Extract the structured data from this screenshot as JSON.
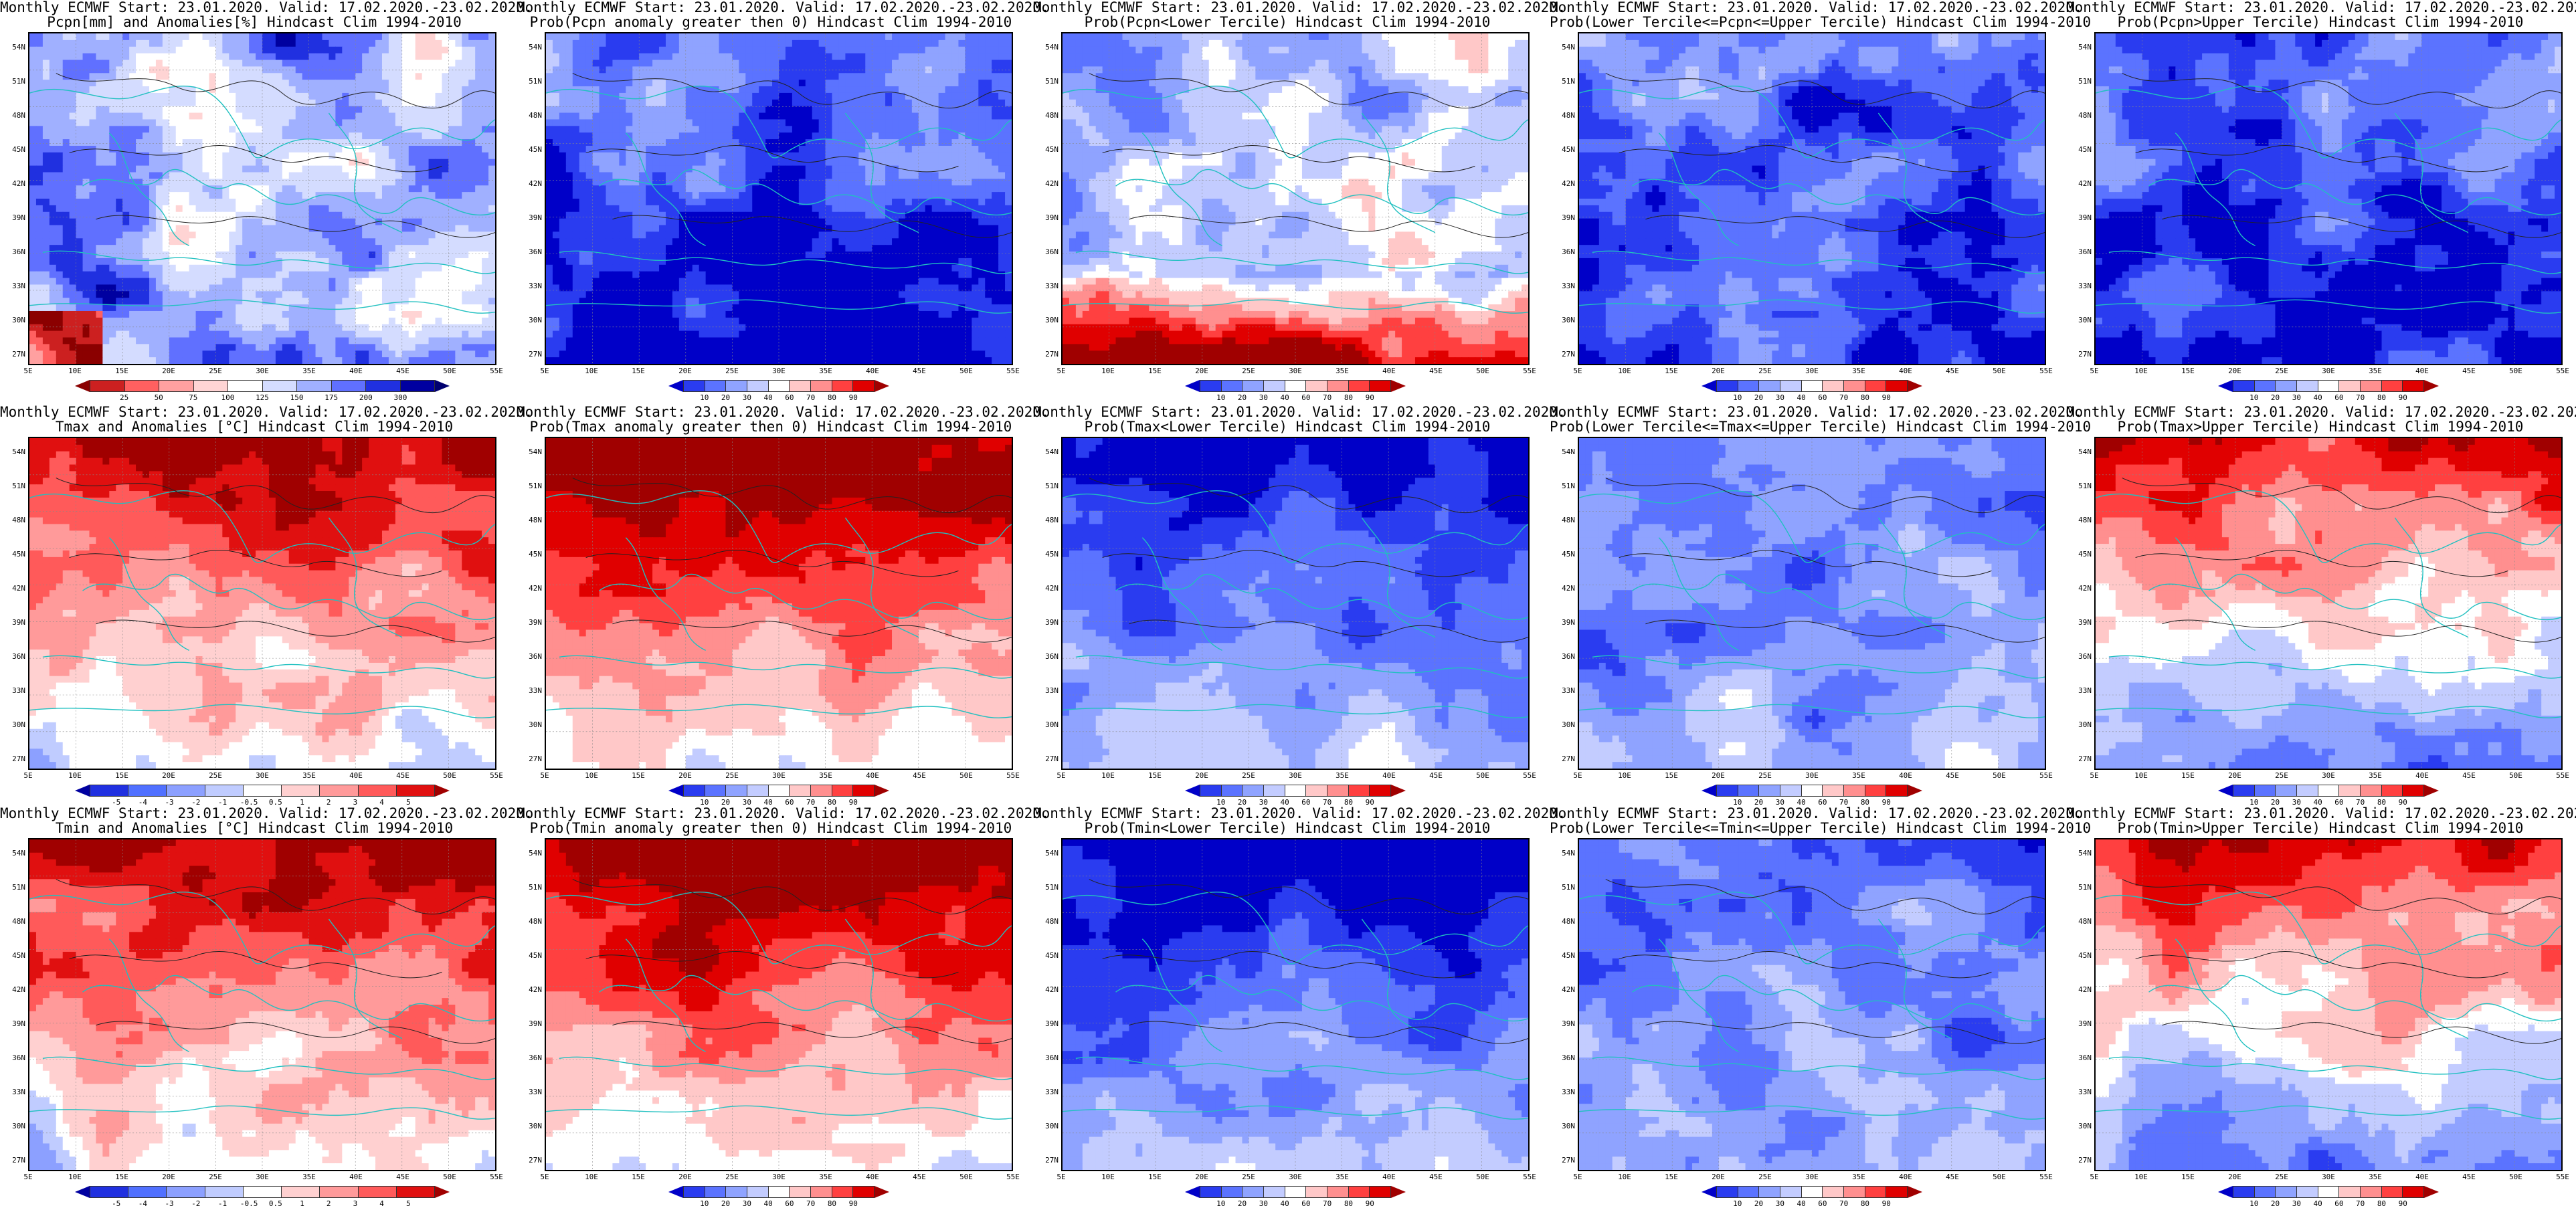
{
  "common": {
    "line1": "Monthly ECMWF Start: 23.01.2020. Valid: 17.02.2020.-23.02.2020.",
    "lat_labels": [
      "54N",
      "51N",
      "48N",
      "45N",
      "42N",
      "39N",
      "36N",
      "33N",
      "30N",
      "27N"
    ],
    "lon_labels": [
      "5E",
      "10E",
      "15E",
      "20E",
      "25E",
      "30E",
      "35E",
      "40E",
      "45E",
      "50E",
      "55E"
    ]
  },
  "palettes": {
    "prob": [
      "#0000c8",
      "#2a3cf0",
      "#5b73ff",
      "#8fa3ff",
      "#c3ccff",
      "#ffffff",
      "#ffc8c8",
      "#ff8f8f",
      "#ff4040",
      "#e00000",
      "#a00000"
    ],
    "pcpn": [
      "#8b0000",
      "#cc2020",
      "#ff6060",
      "#ffa0a0",
      "#ffd4d4",
      "#ffffff",
      "#d4dcff",
      "#a0b0ff",
      "#6070ff",
      "#2030e0",
      "#0000a0",
      "#000070"
    ],
    "temp": [
      "#0000a0",
      "#2030e0",
      "#5070ff",
      "#8ca0ff",
      "#c0ccff",
      "#ffffff",
      "#ffd0d0",
      "#ff9a9a",
      "#ff5a5a",
      "#e01010",
      "#a00000"
    ]
  },
  "colorbars": {
    "prob_ticks": [
      "10",
      "20",
      "30",
      "40",
      "60",
      "70",
      "80",
      "90"
    ],
    "pcpn_ticks": [
      "25",
      "50",
      "75",
      "100",
      "125",
      "150",
      "175",
      "200",
      "300"
    ],
    "temp_ticks": [
      "-5",
      "-4",
      "-3",
      "-2",
      "-1",
      "-0.5",
      "0.5",
      "1",
      "2",
      "3",
      "4",
      "5"
    ]
  },
  "panels": [
    {
      "title2": "Pcpn[mm] and Anomalies[%] Hindcast Clim 1994-2010",
      "pal": "pcpn",
      "ticks": "pcpn_ticks",
      "mode": "pcpn"
    },
    {
      "title2": "Prob(Pcpn anomaly greater then 0) Hindcast Clim 1994-2010",
      "pal": "prob",
      "ticks": "prob_ticks",
      "mode": "p_pos"
    },
    {
      "title2": "Prob(Pcpn<Lower Tercile) Hindcast Clim 1994-2010",
      "pal": "prob",
      "ticks": "prob_ticks",
      "mode": "p_low"
    },
    {
      "title2": "Prob(Lower Tercile<=Pcpn<=Upper Tercile) Hindcast Clim 1994-2010",
      "pal": "prob",
      "ticks": "prob_ticks",
      "mode": "p_mid"
    },
    {
      "title2": "Prob(Pcpn>Upper Tercile) Hindcast Clim 1994-2010",
      "pal": "prob",
      "ticks": "prob_ticks",
      "mode": "p_up"
    },
    {
      "title2": "Tmax and Anomalies [°C] Hindcast Clim 1994-2010",
      "pal": "temp",
      "ticks": "temp_ticks",
      "mode": "t_anom"
    },
    {
      "title2": "Prob(Tmax anomaly greater then 0) Hindcast Clim 1994-2010",
      "pal": "prob",
      "ticks": "prob_ticks",
      "mode": "t_pos"
    },
    {
      "title2": "Prob(Tmax<Lower Tercile) Hindcast Clim 1994-2010",
      "pal": "prob",
      "ticks": "prob_ticks",
      "mode": "t_low"
    },
    {
      "title2": "Prob(Lower Tercile<=Tmax<=Upper Tercile) Hindcast Clim 1994-2010",
      "pal": "prob",
      "ticks": "prob_ticks",
      "mode": "t_mid"
    },
    {
      "title2": "Prob(Tmax>Upper Tercile) Hindcast Clim 1994-2010",
      "pal": "prob",
      "ticks": "prob_ticks",
      "mode": "t_up"
    },
    {
      "title2": "Tmin and Anomalies [°C] Hindcast Clim 1994-2010",
      "pal": "temp",
      "ticks": "temp_ticks",
      "mode": "t_anom"
    },
    {
      "title2": "Prob(Tmin anomaly greater then 0) Hindcast Clim 1994-2010",
      "pal": "prob",
      "ticks": "prob_ticks",
      "mode": "t_pos"
    },
    {
      "title2": "Prob(Tmin<Lower Tercile) Hindcast Clim 1994-2010",
      "pal": "prob",
      "ticks": "prob_ticks",
      "mode": "t_low"
    },
    {
      "title2": "Prob(Lower Tercile<=Tmin<=Upper Tercile) Hindcast Clim 1994-2010",
      "pal": "prob",
      "ticks": "prob_ticks",
      "mode": "t_mid"
    },
    {
      "title2": "Prob(Tmin>Upper Tercile) Hindcast Clim 1994-2010",
      "pal": "prob",
      "ticks": "prob_ticks",
      "mode": "t_up"
    }
  ]
}
